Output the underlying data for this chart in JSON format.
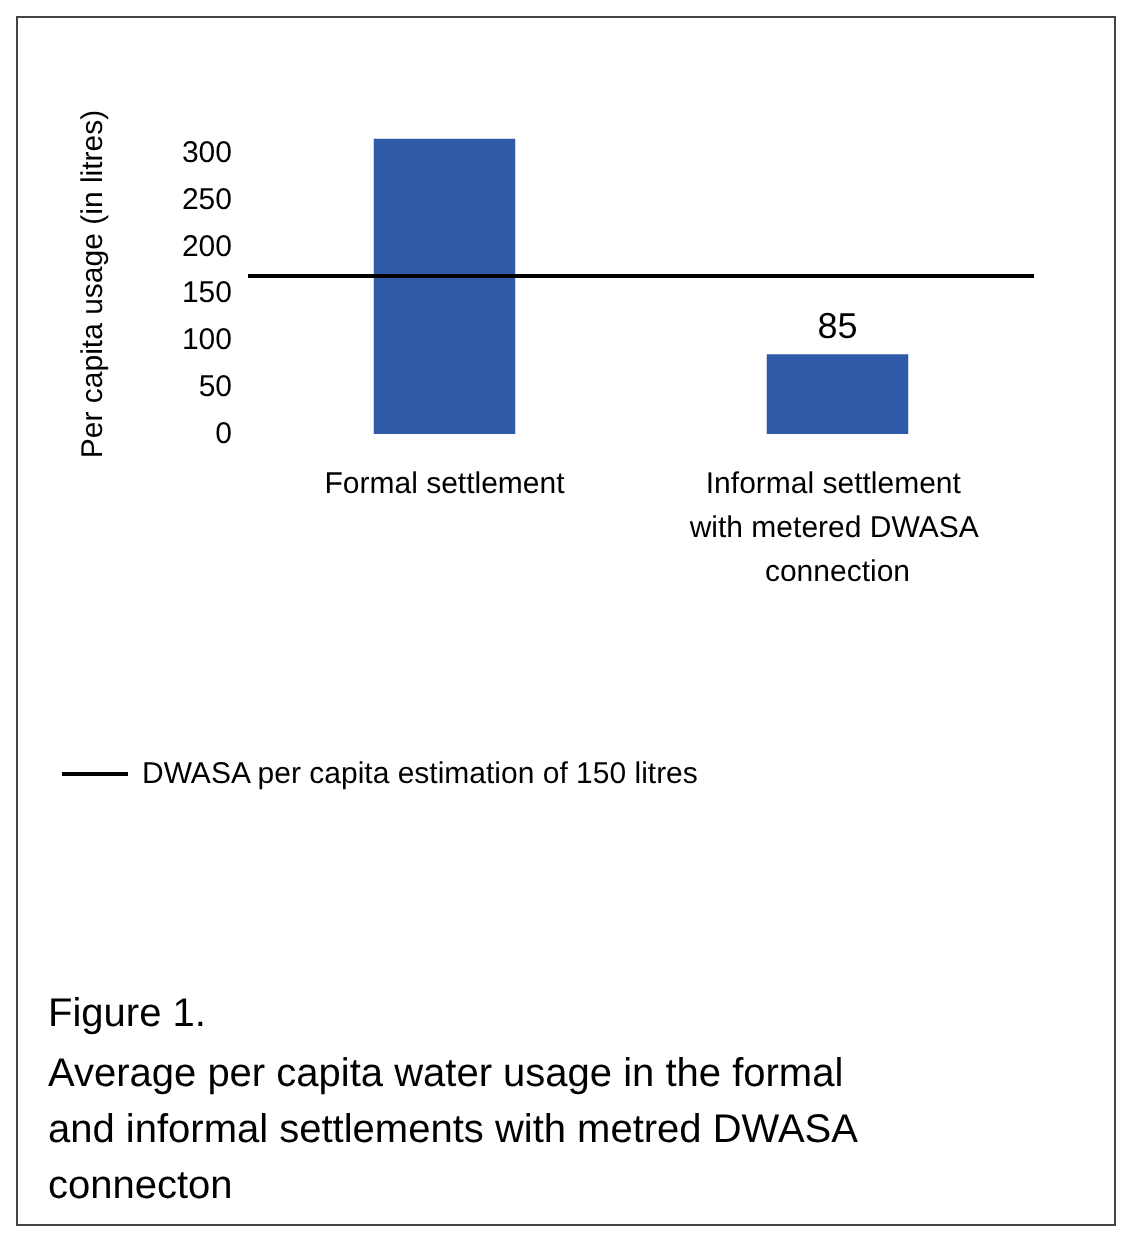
{
  "chart_data": {
    "type": "bar",
    "title": "Figure 1.",
    "subtitle": "Average per capita water usage in the formal and informal settlements with metred DWASA connecton",
    "ylabel": "Per capita usage (in litres)",
    "categories": [
      "Formal settlement",
      "Informal settlement with metered DWASA connection"
    ],
    "values": [
      315,
      85
    ],
    "value_labels": [
      null,
      "85"
    ],
    "color": "#2e5aa8",
    "ylim": [
      0,
      320
    ],
    "yticks": [
      0,
      50,
      100,
      150,
      200,
      250,
      300
    ],
    "grid": false,
    "ref_lines": [
      {
        "axis": "y",
        "value": 170,
        "label": "DWASA per capita estimation of 150 litres",
        "color": "#000000"
      }
    ],
    "legend": "bottom"
  }
}
